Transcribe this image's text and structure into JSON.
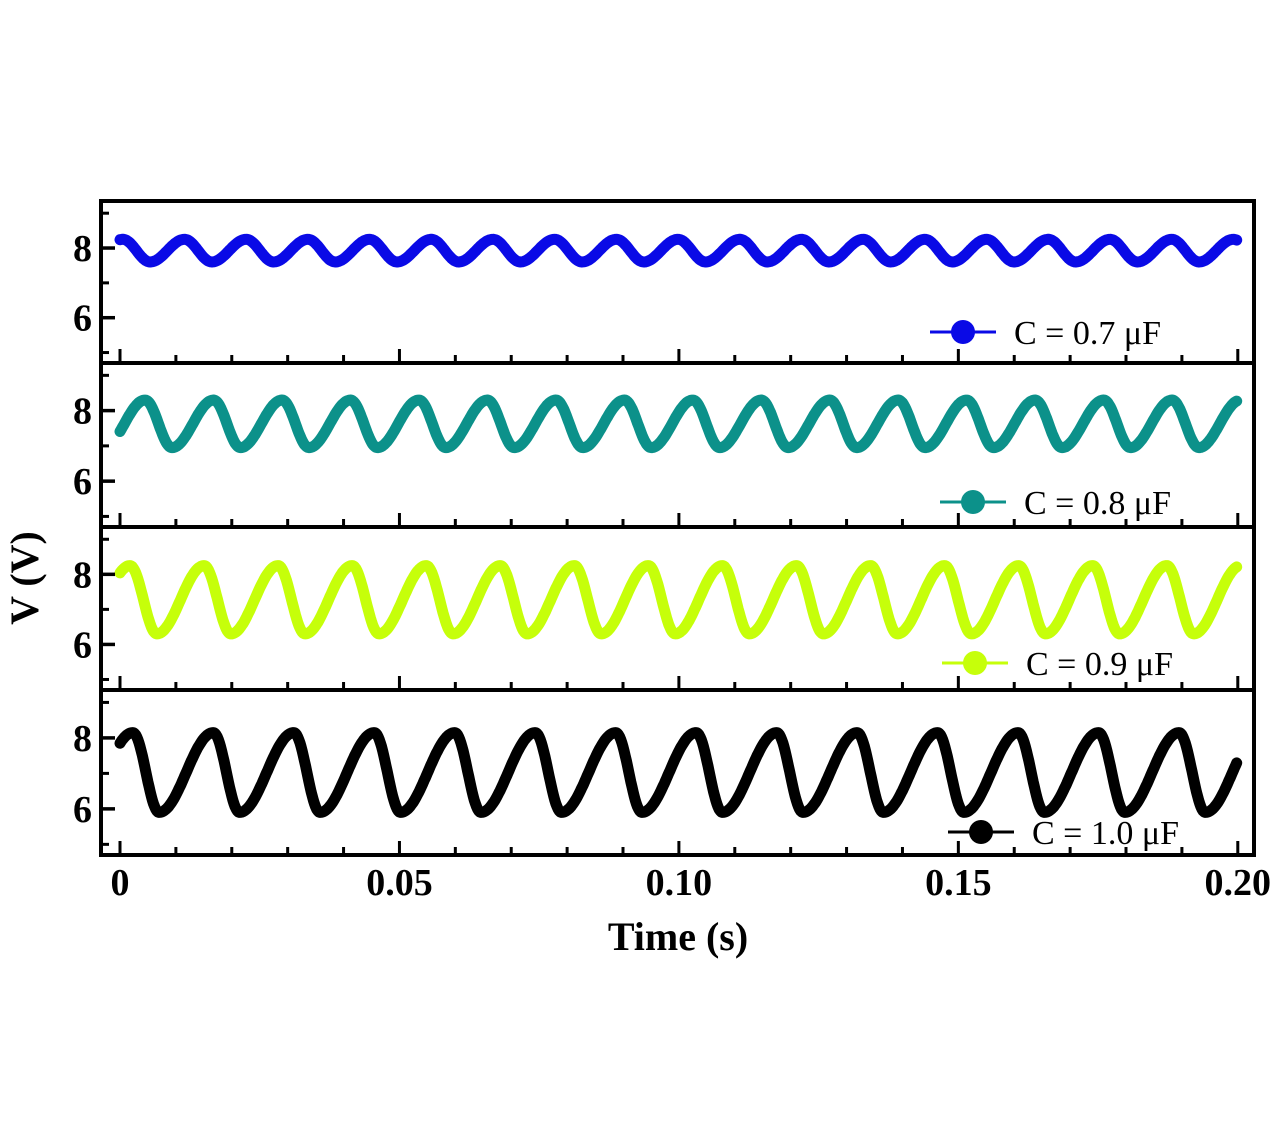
{
  "chart_data": {
    "type": "line",
    "layout": "stacked-panels",
    "xlabel": "Time (s)",
    "ylabel": "V (V)",
    "xlim": [
      -0.0034,
      0.2029
    ],
    "ylim": [
      4.7,
      9.35
    ],
    "x_ticks": [
      {
        "value": 0,
        "label": "0"
      },
      {
        "value": 0.05,
        "label": "0.05"
      },
      {
        "value": 0.1,
        "label": "0.10"
      },
      {
        "value": 0.15,
        "label": "0.15"
      },
      {
        "value": 0.2,
        "label": "0.20"
      }
    ],
    "x_minor_step": 0.01,
    "y_ticks": [
      {
        "value": 8,
        "label": "8"
      },
      {
        "value": 6,
        "label": "6"
      }
    ],
    "y_minor": [
      5,
      7,
      9
    ],
    "legend_position": "bottom-right of each panel",
    "series": [
      {
        "name": "C = 0.7 μF",
        "color": "#0a0ae6",
        "period_s": 0.01104,
        "first_peak_s": 0.0005,
        "first_trough_s": 0.0054,
        "v_max": 8.25,
        "v_min": 7.6
      },
      {
        "name": "C = 0.8 μF",
        "color": "#0c918a",
        "period_s": 0.01225,
        "first_peak_s": 0.0045,
        "first_trough_s": 0.0093,
        "v_max": 8.3,
        "v_min": 6.95
      },
      {
        "name": "C = 0.9 μF",
        "color": "#c6ff0a",
        "period_s": 0.01325,
        "first_peak_s": 0.0018,
        "first_trough_s": 0.0066,
        "v_max": 8.25,
        "v_min": 6.3
      },
      {
        "name": "C = 1.0 μF",
        "color": "#000000",
        "period_s": 0.0144,
        "first_peak_s": 0.0023,
        "first_trough_s": 0.007,
        "v_max": 8.15,
        "v_min": 5.9
      }
    ]
  }
}
